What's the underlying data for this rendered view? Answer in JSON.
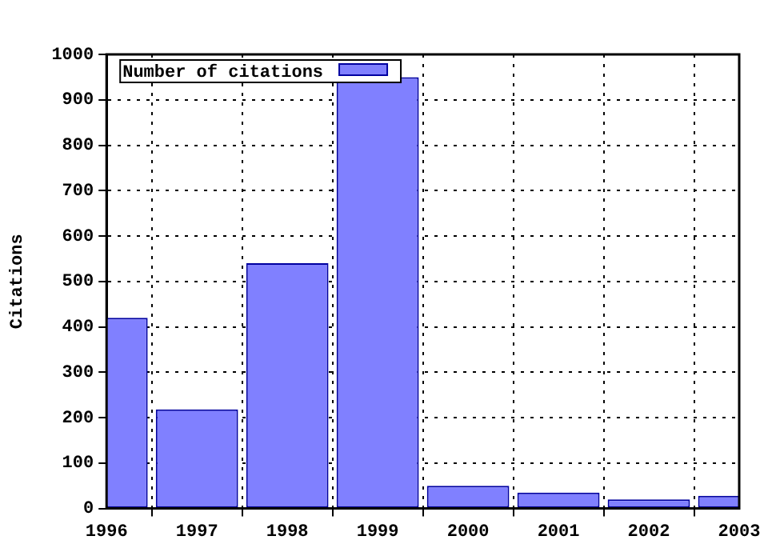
{
  "chart_data": {
    "type": "bar",
    "ylabel": "Citations",
    "x": [
      1996,
      1997,
      1998,
      1999,
      2000,
      2001,
      2002,
      2003
    ],
    "series": [
      {
        "name": "Number of citations",
        "color": "#8080ff",
        "values": [
          420,
          218,
          540,
          950,
          50,
          35,
          20,
          28
        ]
      }
    ],
    "xlim": [
      1996,
      2003
    ],
    "xticks": [
      1996,
      1997,
      1998,
      1999,
      2000,
      2001,
      2002,
      2003
    ],
    "ylim": [
      0,
      1000
    ],
    "yticks": [
      0,
      100,
      200,
      300,
      400,
      500,
      600,
      700,
      800,
      900,
      1000
    ],
    "grid": true,
    "legend": "top left"
  }
}
